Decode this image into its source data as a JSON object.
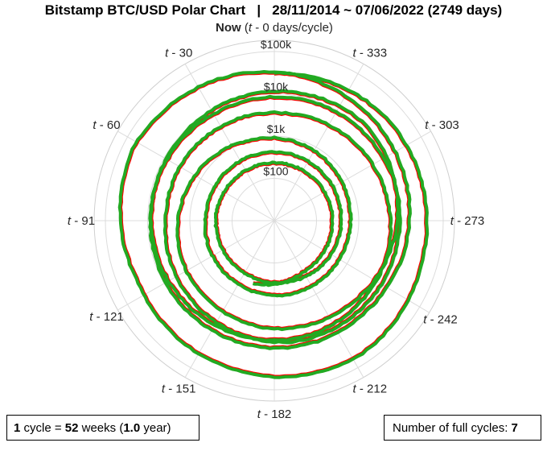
{
  "title": "Bitstamp BTC/USD Polar Chart   |   28/11/2014 ~ 07/06/2022 (2749 days)",
  "chart_data": {
    "type": "line",
    "coordinate_system": "polar",
    "title": "Bitstamp BTC/USD Polar Chart   |   28/11/2014 ~ 07/06/2022 (2749 days)",
    "theta_unit": "days before now within a 364-day cycle (clockwise)",
    "radial_scale": "log",
    "radial_ticks": [
      {
        "value": 100,
        "label": "$100"
      },
      {
        "value": 1000,
        "label": "$1k"
      },
      {
        "value": 10000,
        "label": "$10k"
      },
      {
        "value": 100000,
        "label": "$100k"
      }
    ],
    "angle_ticks": [
      {
        "days": 0,
        "label_prefix": "Now",
        "label_paren": "(",
        "label_italic": "t",
        "label_suffix": " - 0 days/cycle)"
      },
      {
        "days": 30,
        "label_italic": "t",
        "label_suffix": " - 333"
      },
      {
        "days": 61,
        "label_italic": "t",
        "label_suffix": " - 303"
      },
      {
        "days": 91,
        "label_italic": "t",
        "label_suffix": " - 273"
      },
      {
        "days": 122,
        "label_italic": "t",
        "label_suffix": " - 242"
      },
      {
        "days": 152,
        "label_italic": "t",
        "label_suffix": " - 212"
      },
      {
        "days": 182,
        "label_italic": "t",
        "label_suffix": " - 182"
      },
      {
        "days": 212,
        "label_italic": "t",
        "label_suffix": " - 151"
      },
      {
        "days": 243,
        "label_italic": "t",
        "label_suffix": " - 121"
      },
      {
        "days": 273,
        "label_italic": "t",
        "label_suffix": " - 91"
      },
      {
        "days": 303,
        "label_italic": "t",
        "label_suffix": " - 60"
      },
      {
        "days": 334,
        "label_italic": "t",
        "label_suffix": " - 30"
      }
    ],
    "series_colors": {
      "low": "#ff0000",
      "close": "#22aa22"
    },
    "price_path": {
      "days_ago": [
        2749,
        2700,
        2600,
        2500,
        2400,
        2300,
        2200,
        2100,
        2000,
        1900,
        1800,
        1700,
        1600,
        1500,
        1400,
        1300,
        1200,
        1100,
        1000,
        900,
        800,
        700,
        600,
        500,
        400,
        300,
        250,
        200,
        150,
        100,
        50,
        0
      ],
      "price_usd": [
        375,
        250,
        235,
        235,
        260,
        380,
        420,
        430,
        600,
        650,
        1000,
        2500,
        4500,
        14000,
        9000,
        7000,
        6300,
        3600,
        3800,
        8000,
        10000,
        8000,
        9200,
        11500,
        24000,
        58000,
        35000,
        44000,
        60000,
        42000,
        40000,
        31000
      ]
    },
    "grid": true
  },
  "footer": {
    "cycle_count": "1",
    "cycle_mid": " cycle = ",
    "weeks": "52",
    "weeks_mid": " weeks (",
    "years": "1.0",
    "years_suffix": " year)",
    "full_cycles_label": "Number of full cycles: ",
    "full_cycles_value": "7"
  }
}
